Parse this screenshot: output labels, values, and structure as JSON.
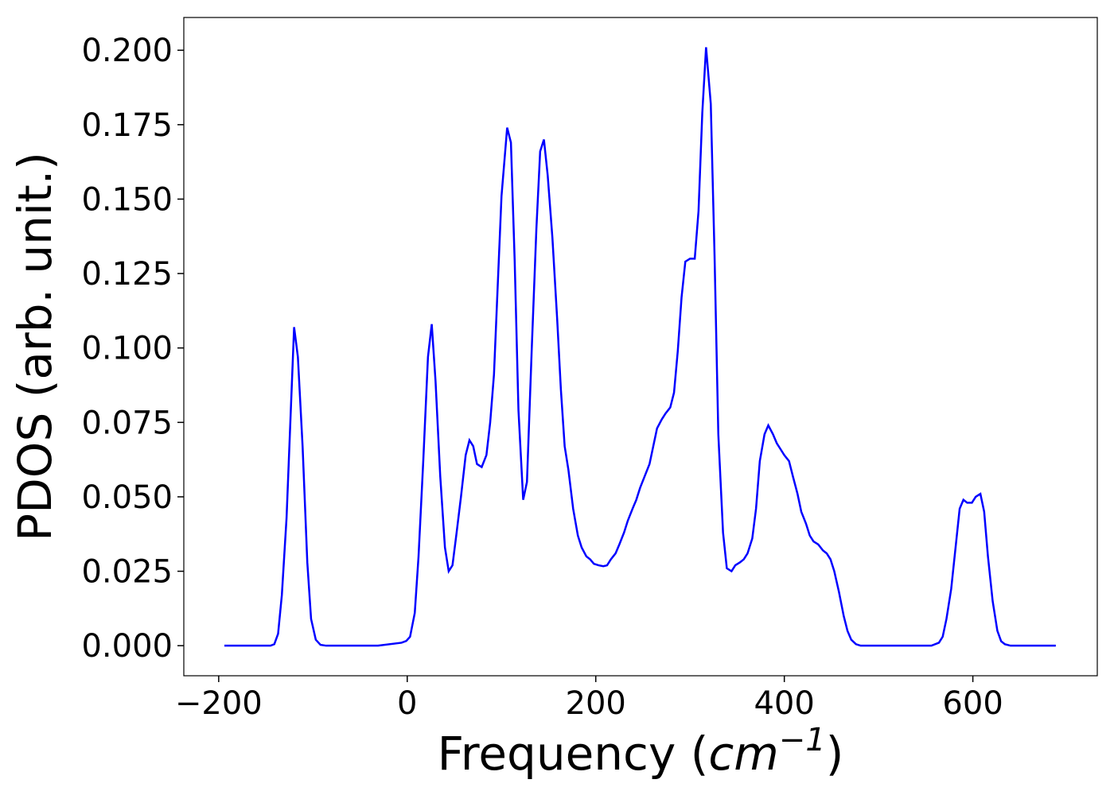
{
  "chart_data": {
    "type": "line",
    "x_label_parts": [
      "Frequency (",
      "cm",
      "−1",
      ")"
    ],
    "y_label": "PDOS (arb. unit.)",
    "xlim": [
      -237,
      732
    ],
    "ylim": [
      -0.0101,
      0.211
    ],
    "xticks": [
      {
        "value": -200,
        "label": "−200"
      },
      0,
      200,
      400,
      600
    ],
    "yticks": [
      {
        "value": 0,
        "label": "0.000"
      },
      {
        "value": 0.025,
        "label": "0.025"
      },
      {
        "value": 0.05,
        "label": "0.050"
      },
      {
        "value": 0.075,
        "label": "0.075"
      },
      {
        "value": 0.1,
        "label": "0.100"
      },
      {
        "value": 0.125,
        "label": "0.125"
      },
      {
        "value": 0.15,
        "label": "0.150"
      },
      {
        "value": 0.175,
        "label": "0.175"
      },
      {
        "value": 0.2,
        "label": "0.200"
      }
    ],
    "grid": false,
    "x": [
      -194,
      -145,
      -141,
      -137,
      -133,
      -128,
      -123,
      -120,
      -116,
      -111,
      -106,
      -102,
      -97,
      -92,
      -86,
      -31,
      -6,
      -1,
      3,
      8,
      12,
      17,
      22,
      26,
      30,
      35,
      40,
      44,
      48,
      52,
      57,
      62,
      66,
      70,
      74,
      79,
      84,
      88,
      92,
      96,
      100,
      106,
      110,
      114,
      118,
      123,
      127,
      132,
      137,
      141,
      145,
      149,
      154,
      159,
      163,
      167,
      171,
      176,
      181,
      185,
      190,
      194,
      198,
      203,
      208,
      212,
      216,
      221,
      225,
      230,
      234,
      239,
      243,
      247,
      252,
      257,
      261,
      265,
      270,
      274,
      279,
      283,
      287,
      291,
      295,
      300,
      305,
      309,
      313,
      317,
      322,
      326,
      330,
      335,
      339,
      344,
      348,
      353,
      357,
      361,
      366,
      370,
      374,
      379,
      383,
      388,
      392,
      396,
      400,
      405,
      409,
      414,
      418,
      423,
      427,
      431,
      436,
      441,
      445,
      449,
      453,
      458,
      463,
      467,
      471,
      476,
      481,
      556,
      564,
      568,
      572,
      577,
      582,
      586,
      590,
      594,
      599,
      603,
      608,
      612,
      616,
      621,
      626,
      630,
      634,
      640,
      688
    ],
    "series": [
      {
        "name": "PDOS",
        "color": "#0000ff",
        "values": [
          0,
          0,
          0.0005,
          0.004,
          0.017,
          0.043,
          0.083,
          0.107,
          0.097,
          0.067,
          0.028,
          0.009,
          0.002,
          0.0003,
          0,
          0,
          0.001,
          0.0016,
          0.003,
          0.011,
          0.03,
          0.062,
          0.097,
          0.108,
          0.089,
          0.057,
          0.033,
          0.025,
          0.027,
          0.037,
          0.05,
          0.064,
          0.069,
          0.067,
          0.061,
          0.06,
          0.064,
          0.075,
          0.091,
          0.121,
          0.151,
          0.174,
          0.169,
          0.129,
          0.079,
          0.049,
          0.055,
          0.099,
          0.14,
          0.166,
          0.17,
          0.158,
          0.137,
          0.11,
          0.086,
          0.067,
          0.059,
          0.046,
          0.037,
          0.033,
          0.03,
          0.029,
          0.0275,
          0.027,
          0.0267,
          0.027,
          0.029,
          0.031,
          0.034,
          0.038,
          0.042,
          0.046,
          0.049,
          0.053,
          0.057,
          0.061,
          0.067,
          0.073,
          0.076,
          0.078,
          0.08,
          0.085,
          0.099,
          0.117,
          0.129,
          0.13,
          0.13,
          0.146,
          0.179,
          0.201,
          0.182,
          0.131,
          0.071,
          0.038,
          0.026,
          0.025,
          0.027,
          0.028,
          0.029,
          0.031,
          0.036,
          0.046,
          0.062,
          0.071,
          0.074,
          0.071,
          0.068,
          0.066,
          0.064,
          0.062,
          0.057,
          0.051,
          0.045,
          0.041,
          0.037,
          0.035,
          0.034,
          0.032,
          0.031,
          0.029,
          0.025,
          0.018,
          0.01,
          0.005,
          0.002,
          0.0005,
          0,
          0,
          0.001,
          0.003,
          0.009,
          0.019,
          0.034,
          0.046,
          0.049,
          0.048,
          0.048,
          0.05,
          0.051,
          0.045,
          0.03,
          0.015,
          0.005,
          0.0015,
          0.0005,
          0,
          0
        ]
      }
    ]
  }
}
